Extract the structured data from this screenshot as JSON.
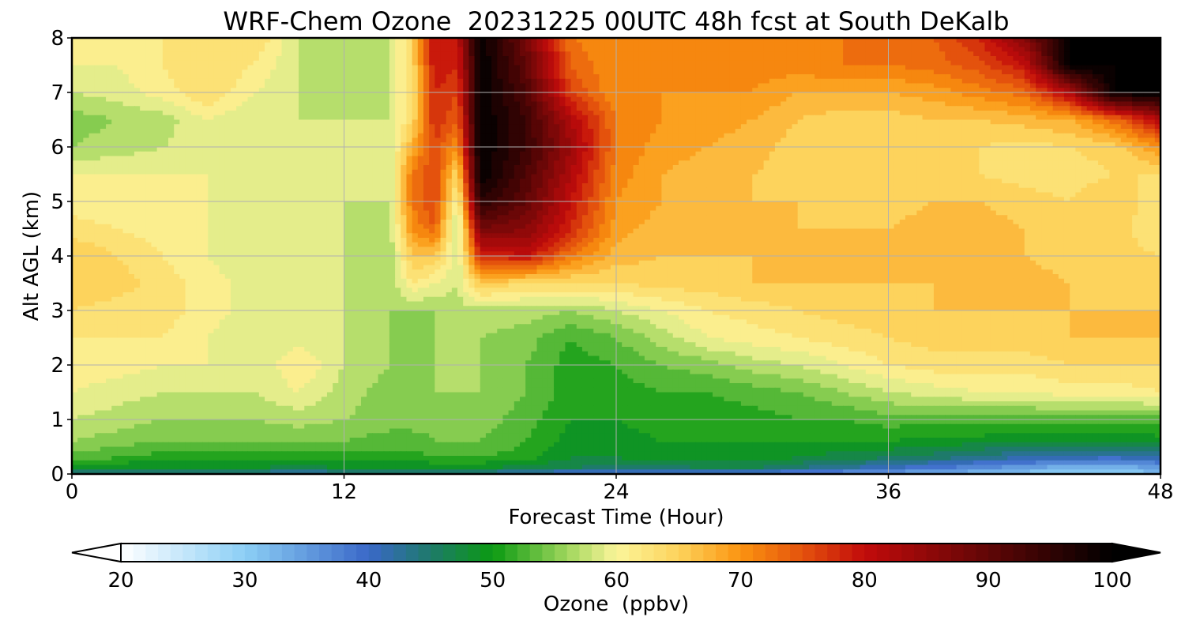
{
  "chart_data": {
    "type": "heatmap",
    "subtype": "filled-contour time-height cross section",
    "title": "WRF-Chem Ozone  20231225 00UTC 48h fcst at South DeKalb",
    "xlabel": "Forecast Time (Hour)",
    "ylabel": "Alt AGL (km)",
    "xlim": [
      0,
      48
    ],
    "ylim": [
      0,
      8
    ],
    "xticks": [
      0,
      12,
      24,
      36,
      48
    ],
    "yticks": [
      0,
      1,
      2,
      3,
      4,
      5,
      6,
      7,
      8
    ],
    "grid": true,
    "colorbar": {
      "label": "Ozone  (ppbv)",
      "orientation": "horizontal",
      "placement": "bottom",
      "range": [
        20,
        100
      ],
      "ticks": [
        20,
        30,
        40,
        50,
        60,
        70,
        80,
        90,
        100
      ],
      "extend": "both",
      "colors": [
        {
          "value": 20,
          "color": "#ffffff"
        },
        {
          "value": 30,
          "color": "#8ccff5"
        },
        {
          "value": 40,
          "color": "#3a68c8"
        },
        {
          "value": 45,
          "color": "#1e7a6a"
        },
        {
          "value": 50,
          "color": "#0b9a12"
        },
        {
          "value": 56,
          "color": "#9fd65c"
        },
        {
          "value": 60,
          "color": "#fbf59a"
        },
        {
          "value": 65,
          "color": "#fdd35c"
        },
        {
          "value": 70,
          "color": "#fb9410"
        },
        {
          "value": 75,
          "color": "#e4520d"
        },
        {
          "value": 80,
          "color": "#c20b0b"
        },
        {
          "value": 90,
          "color": "#600606"
        },
        {
          "value": 100,
          "color": "#000000"
        }
      ]
    },
    "z_hours": [
      0,
      2,
      4,
      6,
      8,
      10,
      12,
      14,
      15,
      16,
      17,
      18,
      20,
      22,
      24,
      26,
      28,
      30,
      32,
      34,
      36,
      38,
      40,
      42,
      44,
      46,
      48
    ],
    "z_altitudes_km": [
      0,
      0.1,
      0.3,
      0.6,
      1,
      1.5,
      2,
      2.5,
      3,
      3.5,
      4,
      4.5,
      5,
      5.5,
      6,
      6.5,
      7,
      7.5,
      8
    ],
    "z_ppbv": [
      [
        44,
        42,
        42,
        42,
        42,
        40,
        42,
        42,
        42,
        42,
        42,
        42,
        40,
        38,
        38,
        38,
        38,
        38,
        36,
        35,
        34,
        33,
        32,
        31,
        30,
        30,
        32
      ],
      [
        49,
        48,
        48,
        48,
        48,
        47,
        48,
        48,
        48,
        48,
        48,
        48,
        47,
        46,
        45,
        45,
        46,
        46,
        44,
        42,
        40,
        38,
        36,
        34,
        32,
        32,
        34
      ],
      [
        53,
        52,
        51,
        51,
        51,
        51,
        51,
        51,
        51,
        52,
        52,
        52,
        51,
        48,
        48,
        49,
        49,
        49,
        48,
        47,
        46,
        45,
        43,
        42,
        41,
        40,
        42
      ],
      [
        56,
        55,
        54,
        54,
        54,
        54,
        54,
        53,
        53,
        54,
        54,
        54,
        52,
        49,
        49,
        50,
        50,
        50,
        50,
        50,
        50,
        49,
        49,
        48,
        48,
        48,
        49
      ],
      [
        58,
        57,
        56,
        56,
        56,
        57,
        56,
        55,
        55,
        55,
        55,
        55,
        53,
        50,
        50,
        51,
        51,
        51,
        52,
        52,
        53,
        53,
        53,
        53,
        53,
        53,
        53
      ],
      [
        60,
        59,
        58,
        58,
        58,
        60,
        57,
        55,
        55,
        56,
        56,
        56,
        54,
        51,
        51,
        52,
        52,
        53,
        54,
        56,
        58,
        59,
        60,
        60,
        61,
        61,
        62
      ],
      [
        61,
        61,
        60,
        60,
        58,
        62,
        58,
        56,
        55,
        56,
        56,
        56,
        54,
        51,
        52,
        54,
        55,
        57,
        58,
        60,
        62,
        63,
        63,
        63,
        64,
        64,
        64
      ],
      [
        62,
        62,
        62,
        60,
        58,
        59,
        58,
        56,
        55,
        56,
        56,
        56,
        55,
        52,
        54,
        57,
        60,
        61,
        62,
        63,
        64,
        65,
        65,
        65,
        66,
        66,
        66
      ],
      [
        64,
        63,
        63,
        61,
        59,
        58,
        58,
        56,
        56,
        56,
        57,
        57,
        57,
        56,
        58,
        60,
        62,
        63,
        64,
        65,
        65,
        66,
        66,
        66,
        66,
        66,
        66
      ],
      [
        66,
        65,
        63,
        61,
        59,
        58,
        58,
        56,
        62,
        60,
        58,
        66,
        64,
        64,
        64,
        65,
        65,
        66,
        66,
        66,
        66,
        66,
        67,
        67,
        66,
        65,
        66
      ],
      [
        66,
        64,
        62,
        60,
        58,
        58,
        58,
        56,
        66,
        66,
        58,
        78,
        80,
        72,
        67,
        66,
        66,
        66,
        66,
        66,
        66,
        67,
        67,
        66,
        65,
        65,
        64
      ],
      [
        63,
        62,
        61,
        60,
        58,
        58,
        58,
        57,
        70,
        74,
        56,
        88,
        86,
        78,
        69,
        67,
        66,
        66,
        66,
        66,
        66,
        67,
        67,
        66,
        65,
        65,
        62
      ],
      [
        61,
        60,
        60,
        60,
        58,
        58,
        58,
        58,
        72,
        76,
        60,
        96,
        90,
        80,
        70,
        68,
        67,
        66,
        66,
        65,
        65,
        66,
        66,
        65,
        64,
        66,
        62
      ],
      [
        60,
        60,
        60,
        60,
        58,
        58,
        58,
        58,
        72,
        76,
        64,
        100,
        92,
        82,
        71,
        68,
        67,
        66,
        65,
        64,
        64,
        65,
        64,
        63,
        63,
        64,
        64
      ],
      [
        56,
        57,
        58,
        59,
        58,
        58,
        58,
        58,
        68,
        76,
        70,
        100,
        94,
        84,
        72,
        69,
        68,
        67,
        65,
        64,
        64,
        65,
        64,
        63,
        64,
        65,
        70
      ],
      [
        55,
        56,
        57,
        60,
        58,
        58,
        58,
        58,
        64,
        78,
        74,
        100,
        94,
        82,
        72,
        70,
        69,
        68,
        66,
        65,
        65,
        66,
        66,
        67,
        68,
        73,
        82
      ],
      [
        58,
        59,
        61,
        64,
        60,
        58,
        56,
        58,
        64,
        78,
        76,
        100,
        92,
        76,
        70,
        70,
        70,
        70,
        68,
        68,
        68,
        69,
        71,
        73,
        82,
        100,
        100
      ],
      [
        60,
        60,
        62,
        64,
        62,
        58,
        56,
        58,
        64,
        80,
        78,
        100,
        90,
        74,
        70,
        70,
        70,
        71,
        71,
        72,
        72,
        73,
        75,
        80,
        100,
        100,
        100
      ],
      [
        60,
        60,
        62,
        64,
        64,
        58,
        56,
        58,
        64,
        80,
        80,
        100,
        88,
        72,
        70,
        70,
        70,
        71,
        72,
        72,
        72,
        74,
        78,
        86,
        100,
        100,
        100
      ]
    ]
  }
}
